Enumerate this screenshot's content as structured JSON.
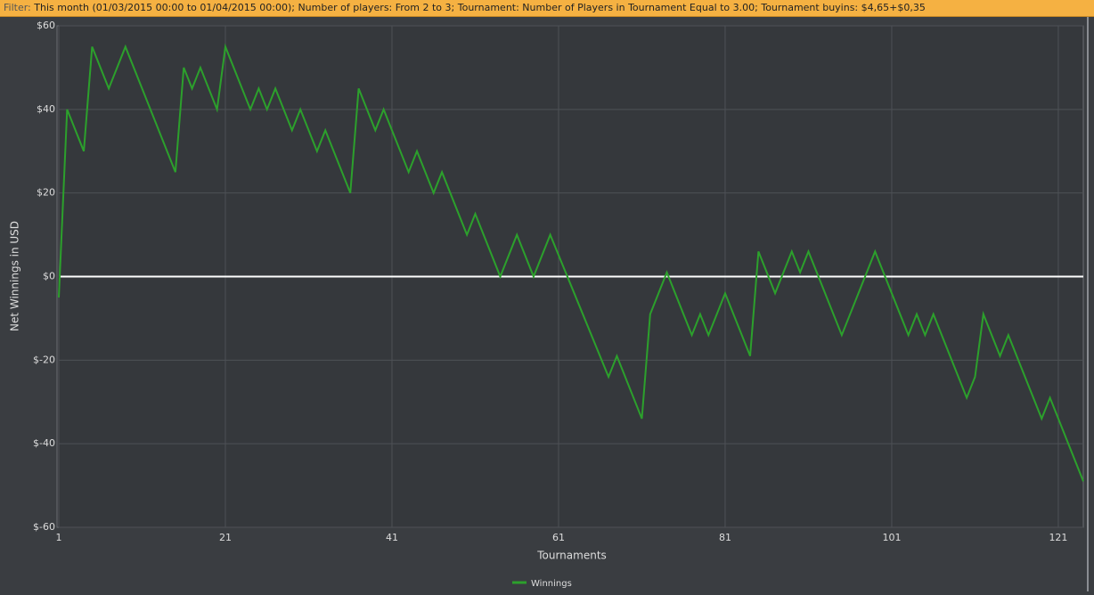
{
  "filter_label": "Filter:",
  "filter_text": "This month (01/03/2015 00:00 to 01/04/2015 00:00); Number of players: From 2 to 3; Tournament: Number of Players in Tournament Equal to 3.00; Tournament buyins: $4,65+$0,35",
  "chart_data": {
    "type": "line",
    "x_label": "Tournaments",
    "y_label": "Net Winnings in USD",
    "x": [
      1,
      2,
      4,
      5,
      7,
      9,
      15,
      16,
      17,
      18,
      20,
      21,
      24,
      25,
      26,
      27,
      29,
      30,
      32,
      33,
      36,
      37,
      39,
      40,
      43,
      44,
      46,
      47,
      50,
      51,
      54,
      56,
      58,
      60,
      67,
      68,
      71,
      72,
      74,
      77,
      78,
      79,
      81,
      84,
      85,
      87,
      89,
      90,
      91,
      95,
      99,
      103,
      104,
      105,
      106,
      110,
      111,
      112,
      114,
      115,
      119,
      120,
      124
    ],
    "series": [
      {
        "name": "Winnings",
        "color": "#2ca02c",
        "values": [
          -5,
          40,
          30,
          55,
          45,
          55,
          25,
          50,
          45,
          50,
          40,
          55,
          40,
          45,
          40,
          45,
          35,
          40,
          30,
          35,
          20,
          45,
          35,
          40,
          25,
          30,
          20,
          25,
          10,
          15,
          0,
          10,
          0,
          10,
          -24,
          -19,
          -34,
          -9,
          1,
          -14,
          -9,
          -14,
          -4,
          -19,
          6,
          -4,
          6,
          1,
          6,
          -14,
          6,
          -14,
          -9,
          -14,
          -9,
          -29,
          -24,
          -9,
          -19,
          -14,
          -34,
          -29,
          -49
        ]
      }
    ],
    "xlim": [
      1,
      124
    ],
    "xticks": [
      1,
      21,
      41,
      61,
      81,
      101,
      121
    ],
    "ylim": [
      -60,
      60
    ],
    "yticks": [
      {
        "value": -60,
        "label": "$-60"
      },
      {
        "value": -40,
        "label": "$-40"
      },
      {
        "value": -20,
        "label": "$-20"
      },
      {
        "value": 0,
        "label": "$0"
      },
      {
        "value": 20,
        "label": "$20"
      },
      {
        "value": 40,
        "label": "$40"
      },
      {
        "value": 60,
        "label": "$60"
      }
    ],
    "grid": true,
    "zero_line": true,
    "legend": "bottom"
  }
}
